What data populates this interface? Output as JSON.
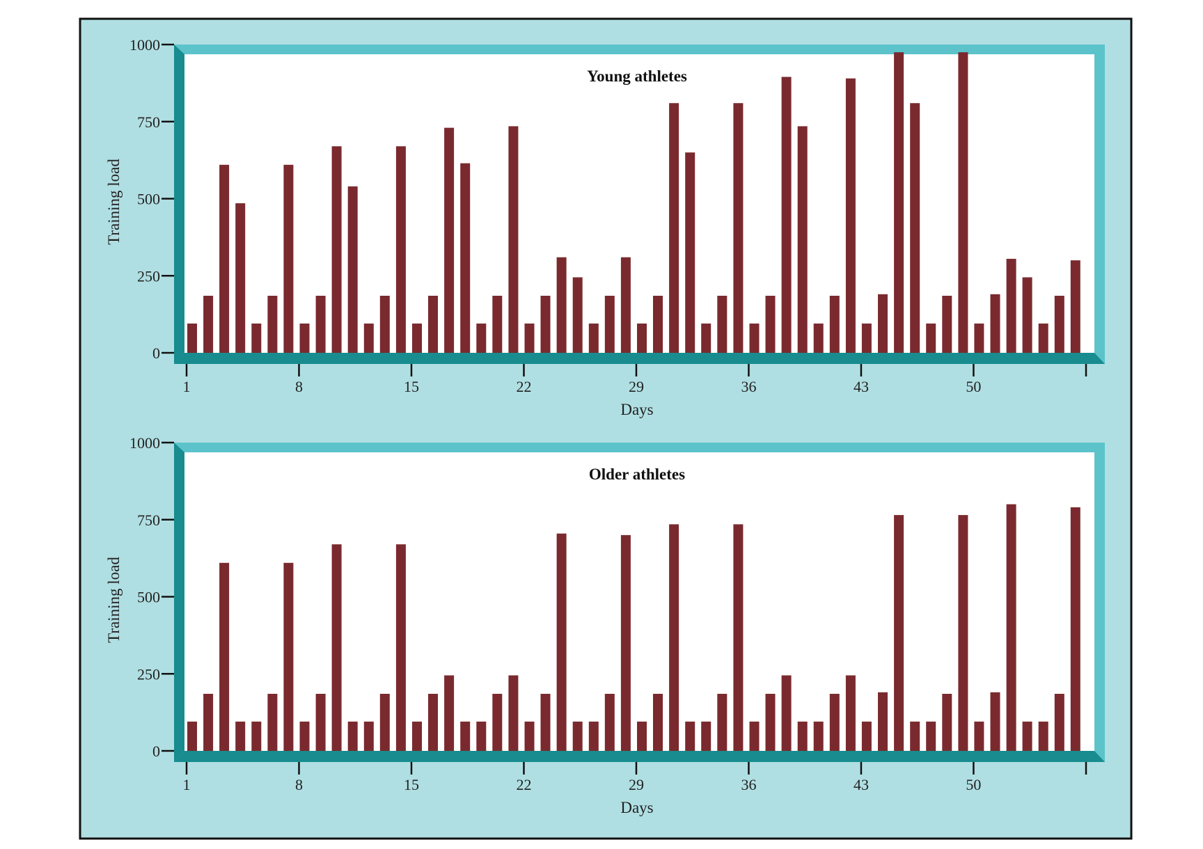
{
  "colors": {
    "background": "#b0dfe3",
    "frame_light": "#5cc3cb",
    "frame_dark": "#188c8f",
    "plot_bg": "#ffffff",
    "bar": "#7a2a2e",
    "axis": "#111111",
    "outer_border": "#111111"
  },
  "chart_data": [
    {
      "type": "bar",
      "title": "Young athletes",
      "xlabel": "Days",
      "ylabel": "Training load",
      "ylim": [
        0,
        1000
      ],
      "yticks": [
        0,
        250,
        500,
        750,
        1000
      ],
      "ytick_labels": [
        "0",
        "250",
        "500",
        "750",
        "1000"
      ],
      "xticks": [
        1,
        8,
        15,
        22,
        29,
        36,
        43,
        50
      ],
      "xtick_labels": [
        "1",
        "8",
        "15",
        "22",
        "29",
        "36",
        "43",
        "50"
      ],
      "x": [
        1,
        2,
        3,
        4,
        5,
        6,
        7,
        8,
        9,
        10,
        11,
        12,
        13,
        14,
        15,
        16,
        17,
        18,
        19,
        20,
        21,
        22,
        23,
        24,
        25,
        26,
        27,
        28,
        29,
        30,
        31,
        32,
        33,
        34,
        35,
        36,
        37,
        38,
        39,
        40,
        41,
        42,
        43,
        44,
        45,
        46,
        47,
        48,
        49,
        50,
        51,
        52,
        53,
        54,
        55,
        56
      ],
      "values": [
        95,
        185,
        610,
        485,
        95,
        185,
        610,
        95,
        185,
        670,
        540,
        95,
        185,
        670,
        95,
        185,
        730,
        615,
        95,
        185,
        735,
        95,
        185,
        310,
        245,
        95,
        185,
        310,
        95,
        185,
        810,
        650,
        95,
        185,
        810,
        95,
        185,
        895,
        735,
        95,
        185,
        890,
        95,
        190,
        975,
        810,
        95,
        185,
        975,
        95,
        190,
        305,
        245,
        95,
        185,
        300
      ],
      "grid": false
    },
    {
      "type": "bar",
      "title": "Older athletes",
      "xlabel": "Days",
      "ylabel": "Training load",
      "ylim": [
        0,
        1000
      ],
      "yticks": [
        0,
        250,
        500,
        750,
        1000
      ],
      "ytick_labels": [
        "0",
        "250",
        "500",
        "750",
        "1000"
      ],
      "xticks": [
        1,
        8,
        15,
        22,
        29,
        36,
        43,
        50
      ],
      "xtick_labels": [
        "1",
        "8",
        "15",
        "22",
        "29",
        "36",
        "43",
        "50"
      ],
      "x": [
        1,
        2,
        3,
        4,
        5,
        6,
        7,
        8,
        9,
        10,
        11,
        12,
        13,
        14,
        15,
        16,
        17,
        18,
        19,
        20,
        21,
        22,
        23,
        24,
        25,
        26,
        27,
        28,
        29,
        30,
        31,
        32,
        33,
        34,
        35,
        36,
        37,
        38,
        39,
        40,
        41,
        42,
        43,
        44,
        45,
        46,
        47,
        48,
        49,
        50,
        51,
        52,
        53,
        54,
        55,
        56
      ],
      "values": [
        95,
        185,
        610,
        95,
        95,
        185,
        610,
        95,
        185,
        670,
        95,
        95,
        185,
        670,
        95,
        185,
        245,
        95,
        95,
        185,
        245,
        95,
        185,
        705,
        95,
        95,
        185,
        700,
        95,
        185,
        735,
        95,
        95,
        185,
        735,
        95,
        185,
        245,
        95,
        95,
        185,
        245,
        95,
        190,
        765,
        95,
        95,
        185,
        765,
        95,
        190,
        800,
        95,
        95,
        185,
        790
      ],
      "grid": false
    }
  ]
}
